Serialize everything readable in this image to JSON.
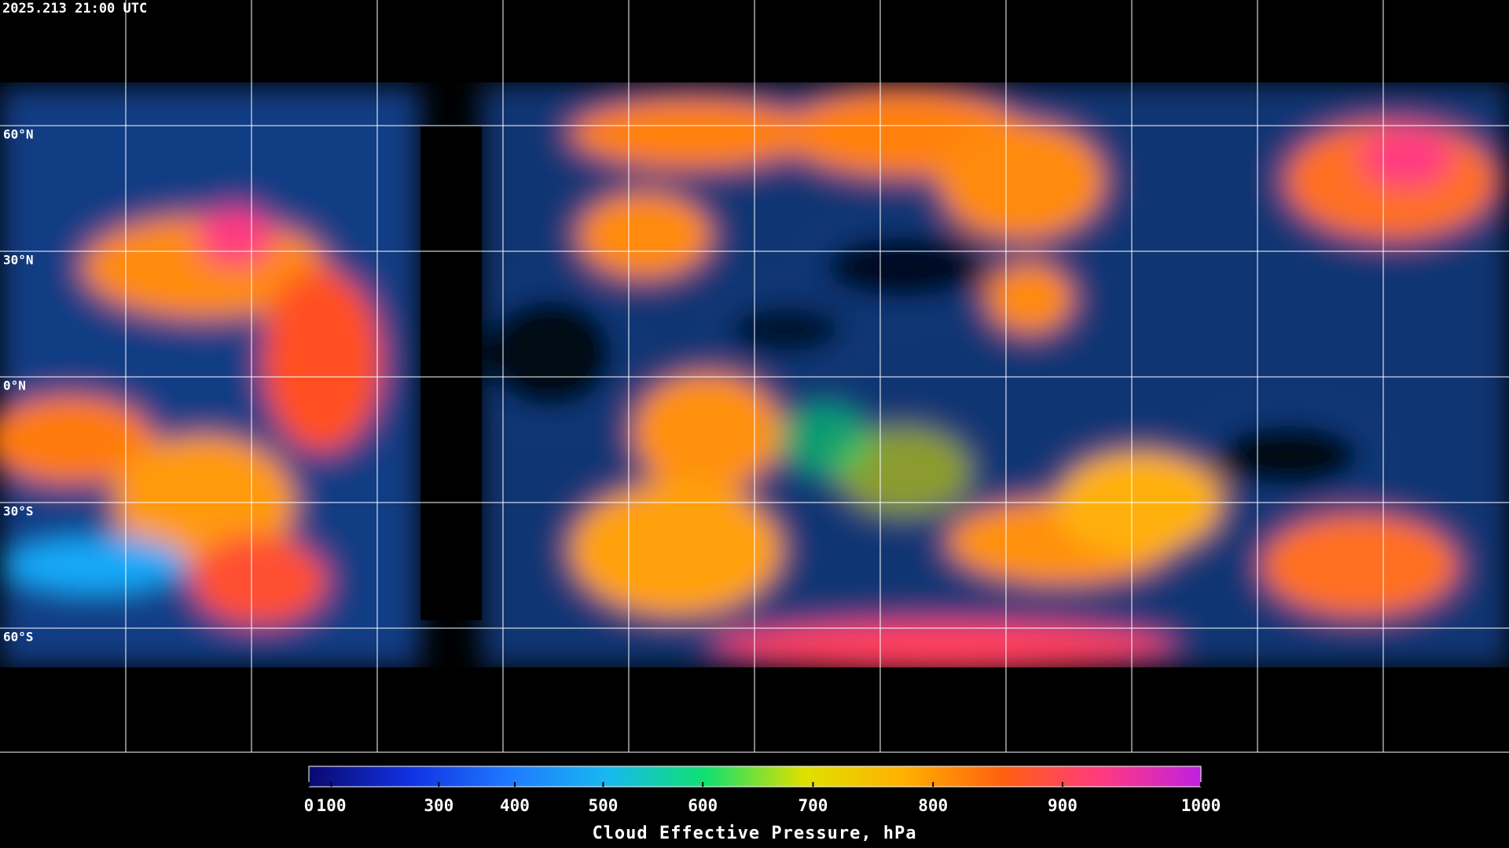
{
  "map": {
    "timestamp": "2025.213 21:00 UTC",
    "latitude_lines": [
      {
        "value": 60,
        "label": "60°N"
      },
      {
        "value": 30,
        "label": "30°N"
      },
      {
        "value": 0,
        "label": "0°N"
      },
      {
        "value": -30,
        "label": "30°S"
      },
      {
        "value": -60,
        "label": "60°S"
      }
    ],
    "ylim": [
      -90,
      90
    ]
  },
  "colorbar": {
    "title": "Cloud Effective Pressure, hPa",
    "lim": [
      0,
      1000
    ],
    "ticks": [
      0,
      100,
      300,
      400,
      500,
      600,
      700,
      800,
      900,
      1000
    ],
    "colormap": [
      "#0a0a6e",
      "#1030e0",
      "#1e78ff",
      "#18b8f0",
      "#10e070",
      "#e0e000",
      "#ffb000",
      "#ff6010",
      "#ff3a80",
      "#c020e0"
    ]
  }
}
